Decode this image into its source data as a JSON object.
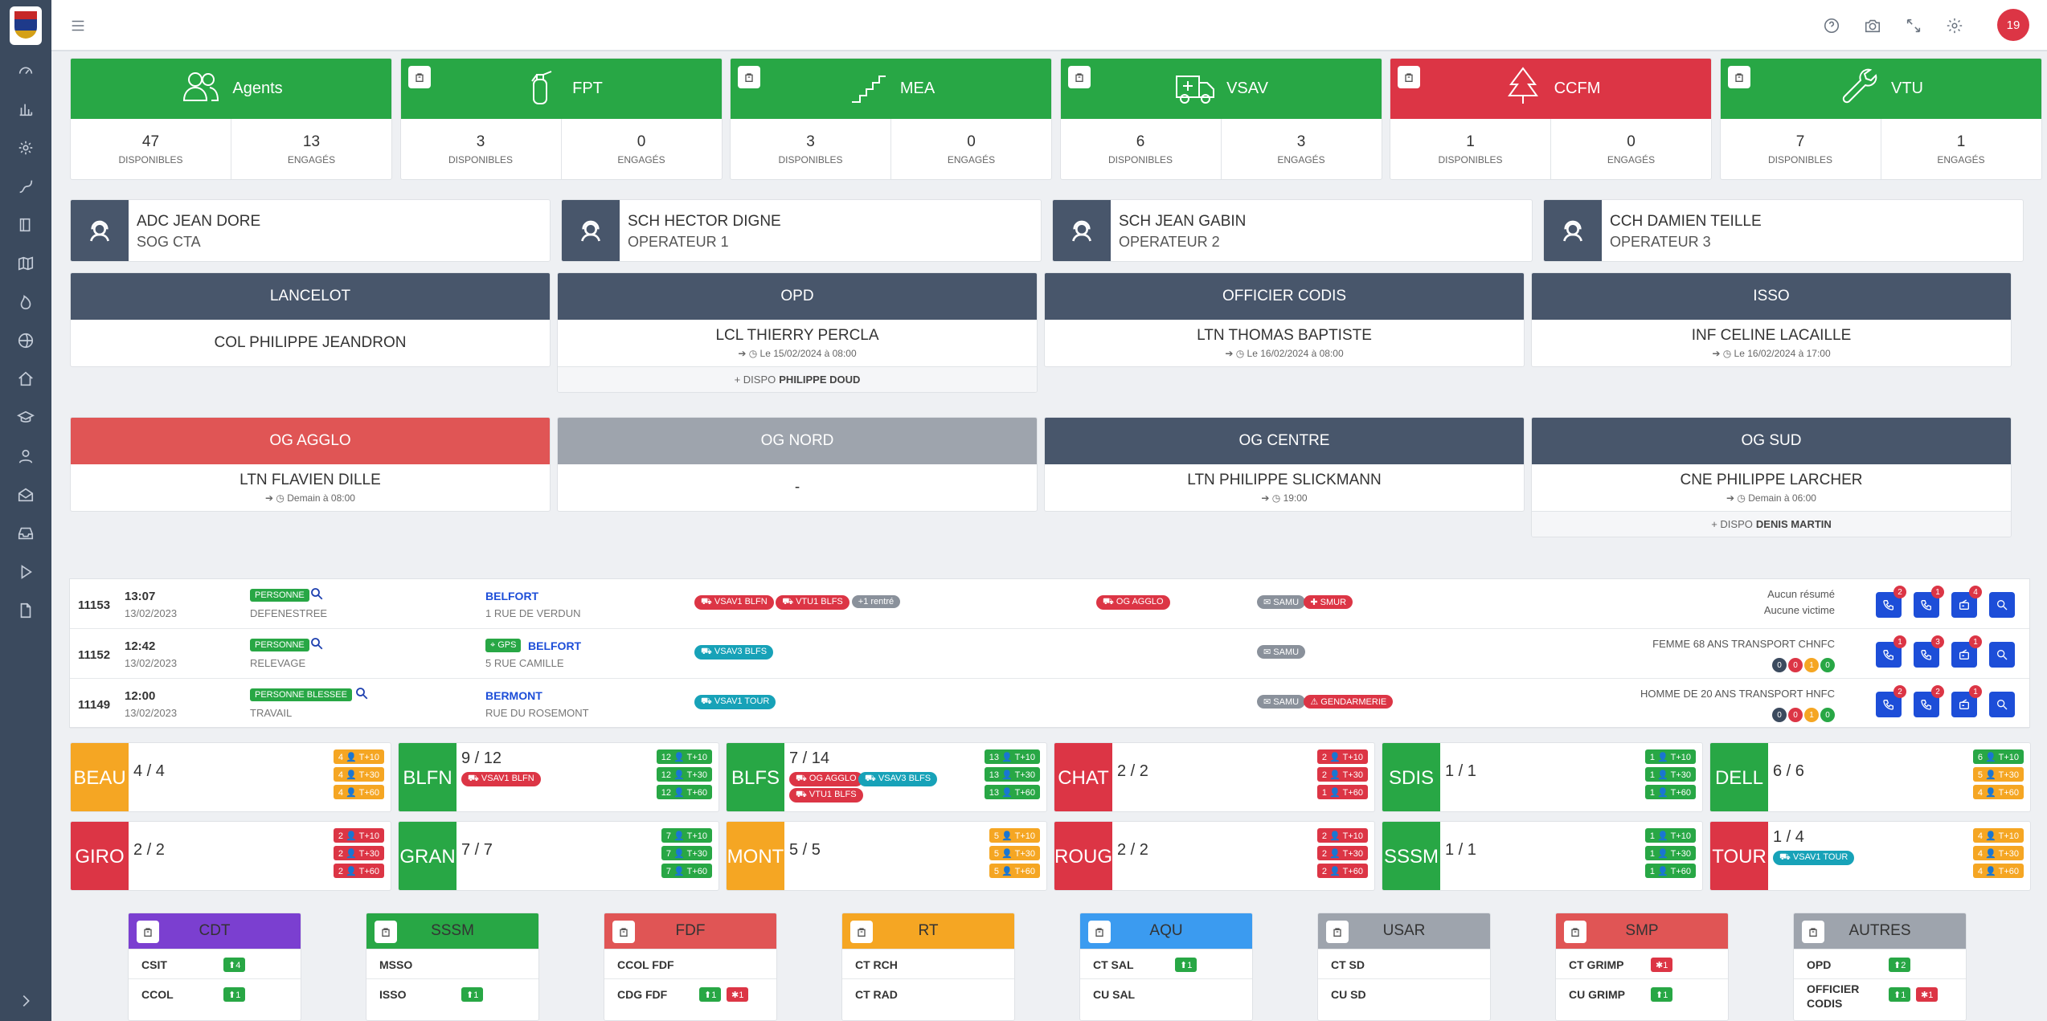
{
  "topbar": {
    "user_badge": "19"
  },
  "resources": [
    {
      "key": "agents",
      "title": "Agents",
      "color": "#28a745",
      "icon": "users-icon",
      "disponibles": "47",
      "engages": "13",
      "clip": false
    },
    {
      "key": "fpt",
      "title": "FPT",
      "color": "#28a745",
      "icon": "extinguisher-icon",
      "disponibles": "3",
      "engages": "0",
      "clip": true
    },
    {
      "key": "mea",
      "title": "MEA",
      "color": "#28a745",
      "icon": "ladder-icon",
      "disponibles": "3",
      "engages": "0",
      "clip": true
    },
    {
      "key": "vsav",
      "title": "VSAV",
      "color": "#28a745",
      "icon": "ambulance-icon",
      "disponibles": "6",
      "engages": "3",
      "clip": true
    },
    {
      "key": "ccfm",
      "title": "CCFM",
      "color": "#dc3545",
      "icon": "tree-icon",
      "disponibles": "1",
      "engages": "0",
      "clip": true
    },
    {
      "key": "vtu",
      "title": "VTU",
      "color": "#28a745",
      "icon": "wrench-icon",
      "disponibles": "7",
      "engages": "1",
      "clip": true
    }
  ],
  "labels": {
    "disponibles": "DISPONIBLES",
    "engages": "ENGAGÉS"
  },
  "operators": [
    {
      "name": "ADC JEAN DORE",
      "role": "SOG CTA"
    },
    {
      "name": "SCH HECTOR DIGNE",
      "role": "OPERATEUR 1"
    },
    {
      "name": "SCH JEAN GABIN",
      "role": "OPERATEUR 2"
    },
    {
      "name": "CCH DAMIEN TEILLE",
      "role": "OPERATEUR 3"
    }
  ],
  "duties": [
    {
      "title": "LANCELOT",
      "color": "#48566b",
      "name": "COL PHILIPPE JEANDRON",
      "sub": ""
    },
    {
      "title": "OPD",
      "color": "#48566b",
      "name": "LCL THIERRY PERCLA",
      "sub": "➔ ◷ Le 15/02/2024 à 08:00",
      "dispo_prefix": "+ DISPO",
      "dispo_name": "PHILIPPE DOUD"
    },
    {
      "title": "OFFICIER CODIS",
      "color": "#48566b",
      "name": "LTN THOMAS BAPTISTE",
      "sub": "➔ ◷ Le 16/02/2024 à 08:00"
    },
    {
      "title": "ISSO",
      "color": "#48566b",
      "name": "INF CELINE LACAILLE",
      "sub": "➔ ◷ Le 16/02/2024 à 17:00"
    },
    {
      "title": "OG AGGLO",
      "color": "#e05555",
      "name": "LTN FLAVIEN DILLE",
      "sub": "➔ ◷ Demain à 08:00"
    },
    {
      "title": "OG NORD",
      "color": "#9ea4ad",
      "name": "-",
      "sub": ""
    },
    {
      "title": "OG CENTRE",
      "color": "#48566b",
      "name": "LTN PHILIPPE SLICKMANN",
      "sub": "➔ ◷ 19:00"
    },
    {
      "title": "OG SUD",
      "color": "#48566b",
      "name": "CNE PHILIPPE LARCHER",
      "sub": "➔ ◷ Demain à 06:00",
      "dispo_prefix": "+ DISPO",
      "dispo_name": "DENIS MARTIN"
    }
  ],
  "incidents": [
    {
      "id": "11153",
      "time": "13:07",
      "date": "13/02/2023",
      "nature": "PERSONNE",
      "nature_sub": "DEFENESTREE",
      "gps": "",
      "city": "BELFORT",
      "address": "1 RUE DE VERDUN",
      "vehicles": [
        {
          "label": "⛟ VSAV1 BLFN",
          "color": "#dc3545"
        },
        {
          "label": "⛟ VTU1 BLFS",
          "color": "#dc3545"
        },
        {
          "label": "+1 rentré",
          "color": "#8a919b"
        }
      ],
      "og": [
        {
          "label": "⛟ OG AGGLO",
          "color": "#dc3545"
        }
      ],
      "partners": [
        {
          "label": "✉ SAMU",
          "color": "#8a919b"
        },
        {
          "label": "✚ SMUR",
          "color": "#dc3545"
        }
      ],
      "summary1": "Aucun résumé",
      "summary2": "Aucune victime",
      "badges": [
        "2",
        "1",
        "4"
      ],
      "dots": []
    },
    {
      "id": "11152",
      "time": "12:42",
      "date": "13/02/2023",
      "nature": "PERSONNE",
      "nature_sub": "RELEVAGE",
      "gps": "⌖ GPS",
      "city": "BELFORT",
      "address": "5 RUE CAMILLE",
      "vehicles": [
        {
          "label": "⛟ VSAV3 BLFS",
          "color": "#17a2b8"
        }
      ],
      "og": [],
      "partners": [
        {
          "label": "✉ SAMU",
          "color": "#8a919b"
        }
      ],
      "summary1": "FEMME 68 ANS TRANSPORT CHNFC",
      "summary2": "",
      "badges": [
        "1",
        "3",
        "1"
      ],
      "dots": [
        "0",
        "0",
        "1",
        "0"
      ]
    },
    {
      "id": "11149",
      "time": "12:00",
      "date": "13/02/2023",
      "nature": "PERSONNE BLESSEE",
      "nature_sub": "TRAVAIL",
      "gps": "",
      "city": "BERMONT",
      "address": "RUE DU ROSEMONT",
      "vehicles": [
        {
          "label": "⛟ VSAV1 TOUR",
          "color": "#17a2b8"
        }
      ],
      "og": [],
      "partners": [
        {
          "label": "✉ SAMU",
          "color": "#8a919b"
        },
        {
          "label": "⚠ GENDARMERIE",
          "color": "#dc3545"
        }
      ],
      "summary1": "HOMME DE 20 ANS TRANSPORT HNFC",
      "summary2": "",
      "badges": [
        "2",
        "2",
        "1"
      ],
      "dots": [
        "0",
        "0",
        "1",
        "0"
      ]
    }
  ],
  "cis": [
    {
      "code": "BEAU",
      "count": "4 / 4",
      "color": "#f5a623",
      "t": [
        "4 👤 T+10",
        "4 👤 T+30",
        "4 👤 T+60"
      ],
      "tc": [
        "#f5a623",
        "#f5a623",
        "#f5a623"
      ],
      "pills": []
    },
    {
      "code": "BLFN",
      "count": "9 / 12",
      "color": "#28a745",
      "t": [
        "12 👤 T+10",
        "12 👤 T+30",
        "12 👤 T+60"
      ],
      "tc": [
        "#28a745",
        "#28a745",
        "#28a745"
      ],
      "pills": [
        {
          "label": "⛟ VSAV1 BLFN",
          "color": "#dc3545"
        }
      ]
    },
    {
      "code": "BLFS",
      "count": "7 / 14",
      "color": "#28a745",
      "t": [
        "13 👤 T+10",
        "13 👤 T+30",
        "13 👤 T+60"
      ],
      "tc": [
        "#28a745",
        "#28a745",
        "#28a745"
      ],
      "pills": [
        {
          "label": "⛟ OG AGGLO",
          "color": "#dc3545"
        },
        {
          "label": "⛟ VSAV3 BLFS",
          "color": "#17a2b8"
        },
        {
          "label": "⛟ VTU1 BLFS",
          "color": "#dc3545"
        }
      ]
    },
    {
      "code": "CHAT",
      "count": "2 / 2",
      "color": "#dc3545",
      "t": [
        "2 👤 T+10",
        "2 👤 T+30",
        "1 👤 T+60"
      ],
      "tc": [
        "#dc3545",
        "#dc3545",
        "#dc3545"
      ],
      "pills": []
    },
    {
      "code": "SDIS",
      "count": "1 / 1",
      "color": "#28a745",
      "t": [
        "1 👤 T+10",
        "1 👤 T+30",
        "1 👤 T+60"
      ],
      "tc": [
        "#28a745",
        "#28a745",
        "#28a745"
      ],
      "pills": []
    },
    {
      "code": "DELL",
      "count": "6 / 6",
      "color": "#28a745",
      "t": [
        "6 👤 T+10",
        "5 👤 T+30",
        "4 👤 T+60"
      ],
      "tc": [
        "#28a745",
        "#f5a623",
        "#f5a623"
      ],
      "pills": []
    },
    {
      "code": "GIRO",
      "count": "2 / 2",
      "color": "#dc3545",
      "t": [
        "2 👤 T+10",
        "2 👤 T+30",
        "2 👤 T+60"
      ],
      "tc": [
        "#dc3545",
        "#dc3545",
        "#dc3545"
      ],
      "pills": []
    },
    {
      "code": "GRAN",
      "count": "7 / 7",
      "color": "#28a745",
      "t": [
        "7 👤 T+10",
        "7 👤 T+30",
        "7 👤 T+60"
      ],
      "tc": [
        "#28a745",
        "#28a745",
        "#28a745"
      ],
      "pills": []
    },
    {
      "code": "MONT",
      "count": "5 / 5",
      "color": "#f5a623",
      "t": [
        "5 👤 T+10",
        "5 👤 T+30",
        "5 👤 T+60"
      ],
      "tc": [
        "#f5a623",
        "#f5a623",
        "#f5a623"
      ],
      "pills": []
    },
    {
      "code": "ROUG",
      "count": "2 / 2",
      "color": "#dc3545",
      "t": [
        "2 👤 T+10",
        "2 👤 T+30",
        "2 👤 T+60"
      ],
      "tc": [
        "#dc3545",
        "#dc3545",
        "#dc3545"
      ],
      "pills": []
    },
    {
      "code": "SSSM",
      "count": "1 / 1",
      "color": "#28a745",
      "t": [
        "1 👤 T+10",
        "1 👤 T+30",
        "1 👤 T+60"
      ],
      "tc": [
        "#28a745",
        "#28a745",
        "#28a745"
      ],
      "pills": []
    },
    {
      "code": "TOUR",
      "count": "1 / 4",
      "color": "#dc3545",
      "t": [
        "4 👤 T+10",
        "4 👤 T+30",
        "4 👤 T+60"
      ],
      "tc": [
        "#f5a623",
        "#f5a623",
        "#f5a623"
      ],
      "pills": [
        {
          "label": "⛟ VSAV1 TOUR",
          "color": "#17a2b8"
        }
      ]
    }
  ],
  "specialties": [
    {
      "title": "CDT",
      "color": "#7b3fd0",
      "rows": [
        {
          "label": "CSIT",
          "chips": [
            {
              "t": "⬆4",
              "c": "#28a745"
            }
          ]
        },
        {
          "label": "CCOL",
          "chips": [
            {
              "t": "⬆1",
              "c": "#28a745"
            }
          ]
        }
      ]
    },
    {
      "title": "SSSM",
      "color": "#28a745",
      "rows": [
        {
          "label": "MSSO",
          "chips": []
        },
        {
          "label": "ISSO",
          "chips": [
            {
              "t": "⬆1",
              "c": "#28a745"
            }
          ]
        }
      ]
    },
    {
      "title": "FDF",
      "color": "#e05555",
      "rows": [
        {
          "label": "CCOL FDF",
          "chips": []
        },
        {
          "label": "CDG FDF",
          "chips": [
            {
              "t": "⬆1",
              "c": "#28a745"
            },
            {
              "t": "✱1",
              "c": "#dc3545"
            }
          ]
        }
      ]
    },
    {
      "title": "RT",
      "color": "#f5a623",
      "rows": [
        {
          "label": "CT RCH",
          "chips": []
        },
        {
          "label": "CT RAD",
          "chips": []
        }
      ]
    },
    {
      "title": "AQU",
      "color": "#3b9bf0",
      "rows": [
        {
          "label": "CT SAL",
          "chips": [
            {
              "t": "⬆1",
              "c": "#28a745"
            }
          ]
        },
        {
          "label": "CU SAL",
          "chips": []
        }
      ]
    },
    {
      "title": "USAR",
      "color": "#9ea4ad",
      "rows": [
        {
          "label": "CT SD",
          "chips": []
        },
        {
          "label": "CU SD",
          "chips": []
        }
      ]
    },
    {
      "title": "SMP",
      "color": "#e05555",
      "rows": [
        {
          "label": "CT GRIMP",
          "chips": [
            {
              "t": "✱1",
              "c": "#dc3545"
            }
          ]
        },
        {
          "label": "CU GRIMP",
          "chips": [
            {
              "t": "⬆1",
              "c": "#28a745"
            }
          ]
        }
      ]
    },
    {
      "title": "AUTRES",
      "color": "#9ea4ad",
      "rows": [
        {
          "label": "OPD",
          "chips": [
            {
              "t": "⬆2",
              "c": "#28a745"
            }
          ]
        },
        {
          "label": "OFFICIER CODIS",
          "chips": [
            {
              "t": "⬆1",
              "c": "#28a745"
            },
            {
              "t": "✱1",
              "c": "#dc3545"
            }
          ]
        }
      ]
    }
  ]
}
